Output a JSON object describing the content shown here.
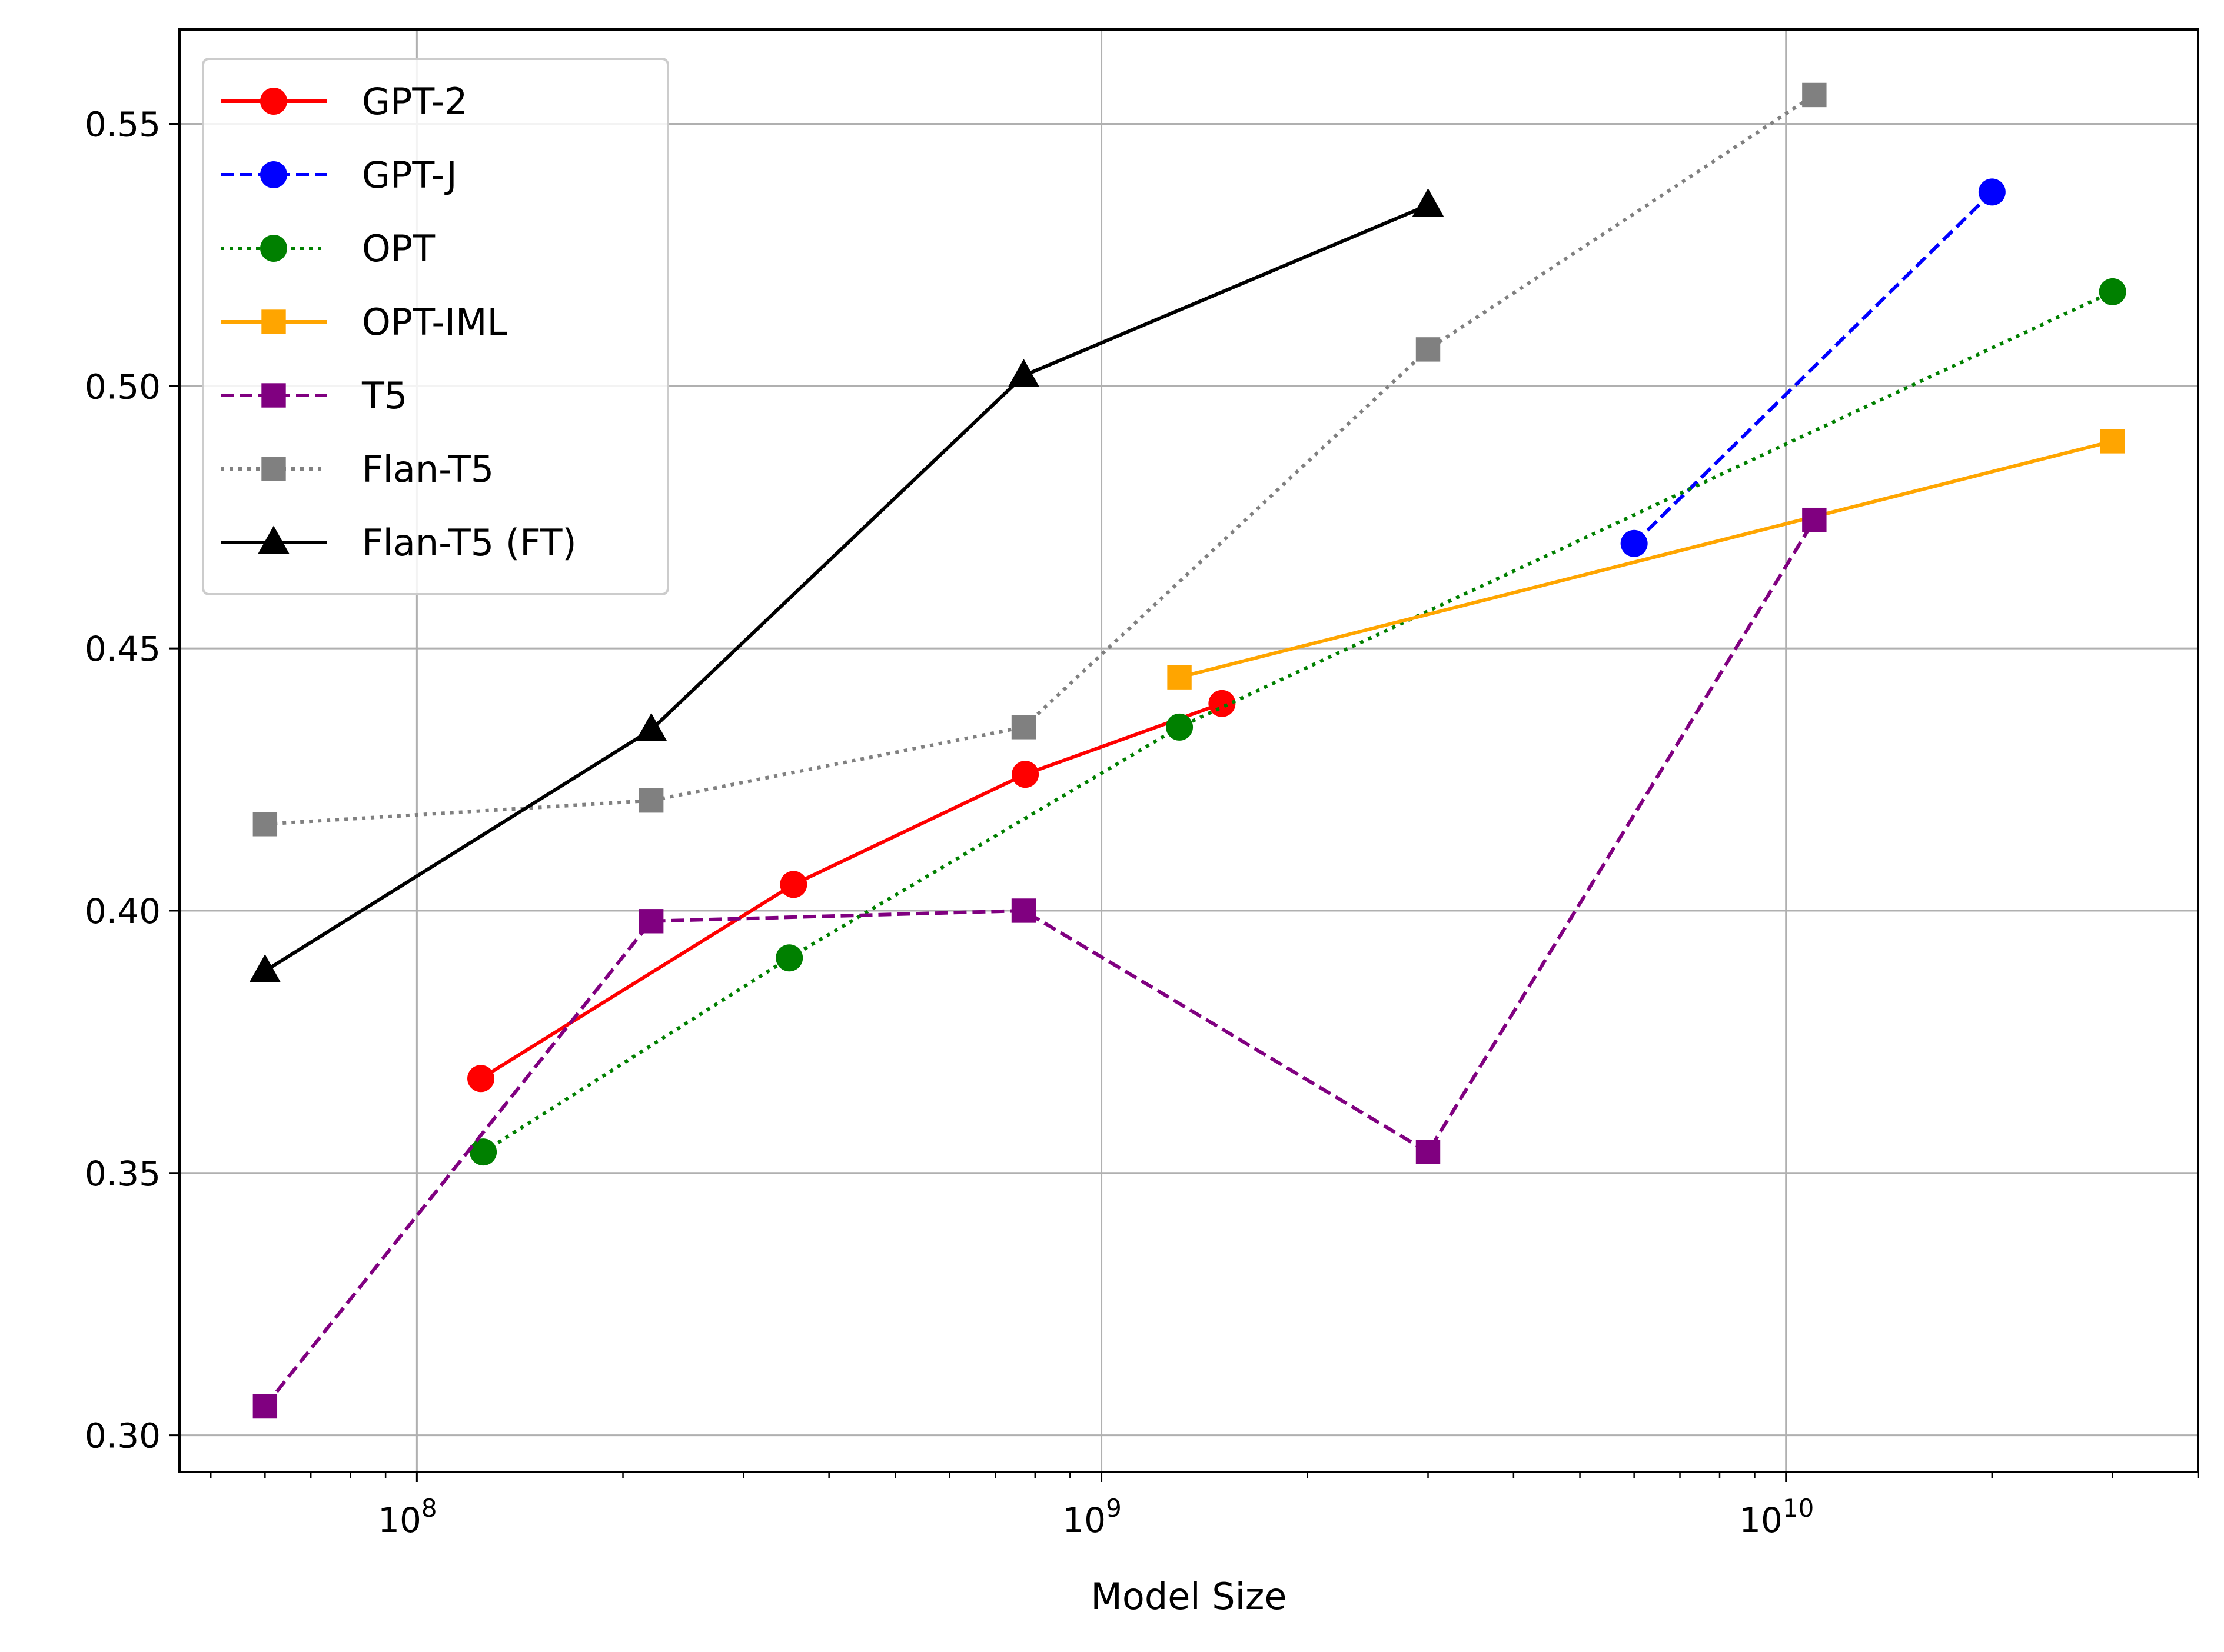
{
  "chart_data": {
    "type": "line",
    "title": "",
    "xlabel": "Model Size",
    "ylabel": "",
    "xscale": "log",
    "xlim": [
      45000000,
      40000000000
    ],
    "ylim": [
      0.293,
      0.568
    ],
    "grid": true,
    "legend_position": "top-left",
    "y_ticks": [
      "0.30",
      "0.35",
      "0.40",
      "0.45",
      "0.50",
      "0.55"
    ],
    "x_ticks": [
      {
        "base": "10",
        "exp": "8"
      },
      {
        "base": "10",
        "exp": "9"
      },
      {
        "base": "10",
        "exp": "10"
      }
    ],
    "series": [
      {
        "name": "GPT-2",
        "color": "#ff0000",
        "dash": "solid",
        "marker": "circle",
        "x": [
          124000000,
          355000000,
          774000000,
          1500000000
        ],
        "y": [
          0.368,
          0.405,
          0.426,
          0.4395
        ]
      },
      {
        "name": "GPT-J",
        "color": "#0000ff",
        "dash": "dashed",
        "marker": "circle",
        "x": [
          6000000000,
          20000000000
        ],
        "y": [
          0.47,
          0.537
        ]
      },
      {
        "name": "OPT",
        "color": "#008000",
        "dash": "dotted",
        "marker": "circle",
        "x": [
          125000000,
          350000000,
          1300000000,
          30000000000
        ],
        "y": [
          0.354,
          0.391,
          0.435,
          0.518
        ]
      },
      {
        "name": "OPT-IML",
        "color": "#ffa500",
        "dash": "solid",
        "marker": "square",
        "x": [
          1300000000,
          30000000000
        ],
        "y": [
          0.4445,
          0.4895
        ]
      },
      {
        "name": "T5",
        "color": "#800080",
        "dash": "dashed",
        "marker": "square",
        "x": [
          60000000,
          220000000,
          770000000,
          3000000000,
          11000000000
        ],
        "y": [
          0.3055,
          0.398,
          0.4,
          0.354,
          0.4745
        ]
      },
      {
        "name": "Flan-T5",
        "color": "#808080",
        "dash": "dotted",
        "marker": "square",
        "x": [
          60000000,
          220000000,
          770000000,
          3000000000,
          11000000000
        ],
        "y": [
          0.4165,
          0.421,
          0.435,
          0.507,
          0.5555
        ]
      },
      {
        "name": "Flan-T5 (FT)",
        "color": "#000000",
        "dash": "solid",
        "marker": "triangle",
        "x": [
          60000000,
          220000000,
          770000000,
          3000000000
        ],
        "y": [
          0.3885,
          0.4345,
          0.502,
          0.5345
        ]
      }
    ]
  }
}
